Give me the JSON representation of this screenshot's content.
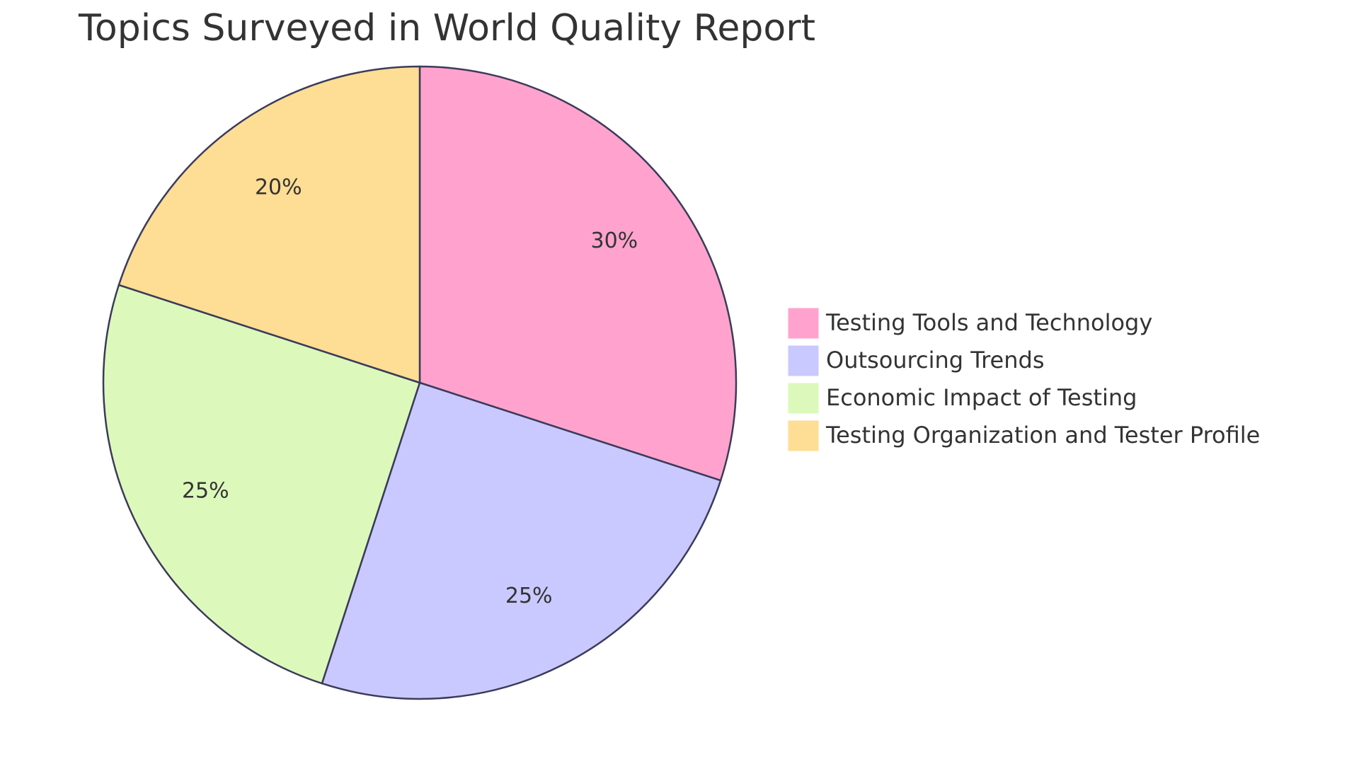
{
  "chart_data": {
    "type": "pie",
    "title": "Topics Surveyed in World Quality Report",
    "categories": [
      "Testing Tools and Technology",
      "Outsourcing Trends",
      "Economic Impact of Testing",
      "Testing Organization and Tester Profile"
    ],
    "values": [
      30,
      25,
      25,
      20
    ],
    "value_labels": [
      "30%",
      "25%",
      "25%",
      "20%"
    ],
    "colors": [
      "#ffa3ce",
      "#c9c9ff",
      "#dcf9bb",
      "#fedd94"
    ],
    "legend": "right"
  }
}
